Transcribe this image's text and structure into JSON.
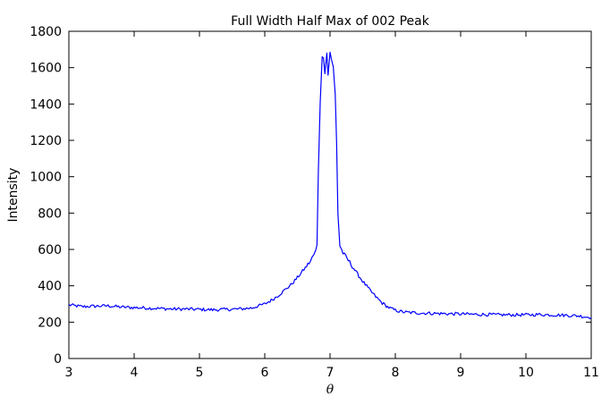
{
  "chart_data": {
    "type": "line",
    "title": "Full Width Half Max of 002 Peak",
    "xlabel": "θ",
    "ylabel": "Intensity",
    "xlim": [
      3,
      11
    ],
    "ylim": [
      0,
      1800
    ],
    "xticks": [
      3,
      4,
      5,
      6,
      7,
      8,
      9,
      10,
      11
    ],
    "yticks": [
      0,
      200,
      400,
      600,
      800,
      1000,
      1200,
      1400,
      1600,
      1800
    ],
    "grid": false,
    "legend": "none",
    "series": [
      {
        "color": "#0000ff",
        "x": [
          3.0,
          3.2,
          3.4,
          3.6,
          3.8,
          4.0,
          4.2,
          4.4,
          4.6,
          4.8,
          5.0,
          5.2,
          5.4,
          5.6,
          5.8,
          6.0,
          6.1,
          6.2,
          6.3,
          6.4,
          6.5,
          6.6,
          6.7,
          6.75,
          6.78,
          6.8,
          6.82,
          6.85,
          6.88,
          6.9,
          6.92,
          6.95,
          6.97,
          7.0,
          7.02,
          7.05,
          7.08,
          7.1,
          7.12,
          7.15,
          7.2,
          7.3,
          7.4,
          7.5,
          7.6,
          7.7,
          7.8,
          7.9,
          8.0,
          8.1,
          8.2,
          8.4,
          8.6,
          8.8,
          9.0,
          9.2,
          9.4,
          9.6,
          9.8,
          10.0,
          10.2,
          10.4,
          10.6,
          10.8,
          11.0
        ],
        "y": [
          295,
          285,
          288,
          290,
          283,
          280,
          278,
          275,
          272,
          272,
          270,
          268,
          270,
          272,
          278,
          300,
          320,
          345,
          375,
          405,
          445,
          490,
          535,
          570,
          590,
          620,
          1030,
          1420,
          1650,
          1670,
          1580,
          1680,
          1560,
          1690,
          1640,
          1600,
          1450,
          1200,
          800,
          620,
          580,
          530,
          475,
          425,
          380,
          340,
          305,
          280,
          265,
          257,
          253,
          250,
          248,
          246,
          245,
          243,
          242,
          240,
          240,
          240,
          242,
          240,
          238,
          235,
          225
        ]
      }
    ]
  }
}
